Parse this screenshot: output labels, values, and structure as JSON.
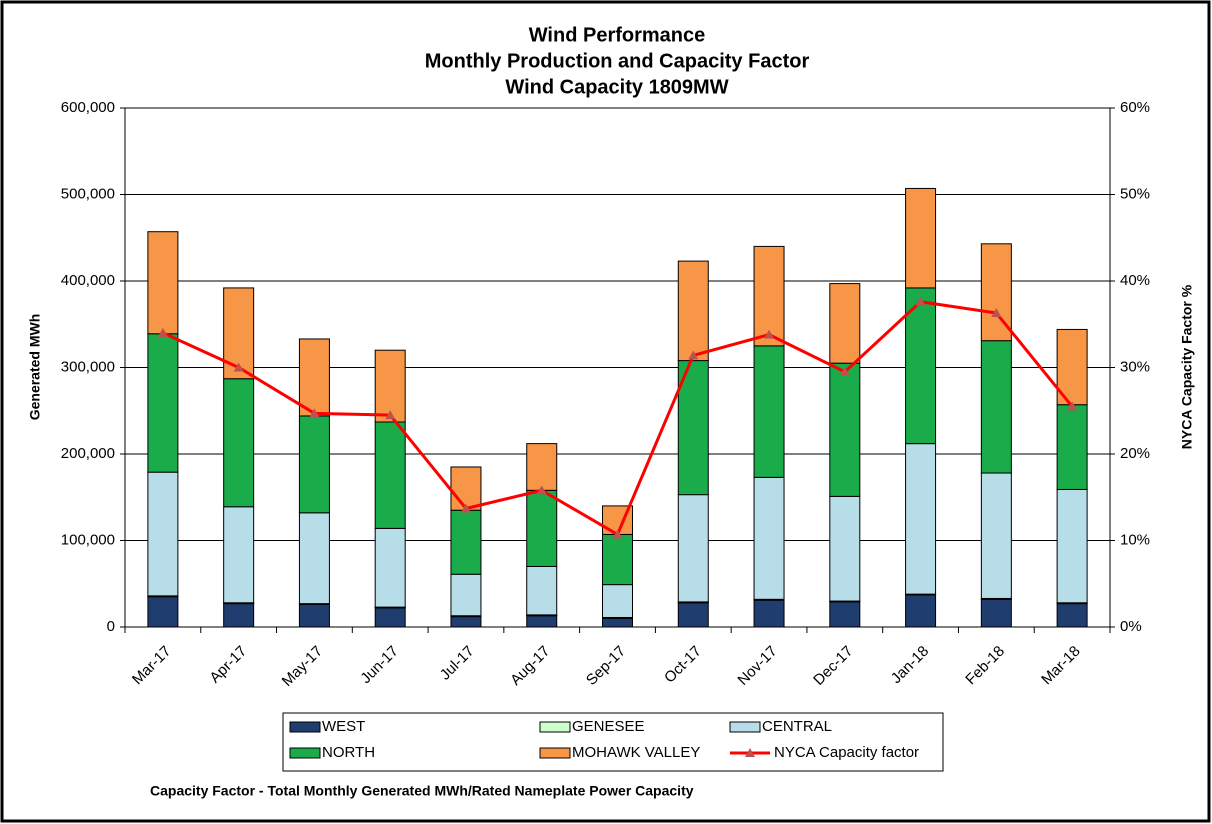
{
  "chart_data": {
    "type": "bar",
    "stacked": true,
    "title": "Wind Performance",
    "subtitle": [
      "Monthly Production and Capacity Factor",
      "Wind Capacity 1809MW"
    ],
    "y_label": "Generated  MWh",
    "y2_label": "NYCA Capacity  Factor %",
    "note": "Capacity Factor  - Total Monthly Generated MWh/Rated Nameplate Power Capacity",
    "categories": [
      "Mar-17",
      "Apr-17",
      "May-17",
      "Jun-17",
      "Jul-17",
      "Aug-17",
      "Sep-17",
      "Oct-17",
      "Nov-17",
      "Dec-17",
      "Jan-18",
      "Feb-18",
      "Mar-18"
    ],
    "series": [
      {
        "name": "WEST",
        "color": "#1f3d6e",
        "values": [
          35000,
          27000,
          26000,
          22000,
          12000,
          13000,
          10000,
          28000,
          31000,
          29000,
          37000,
          32000,
          27000
        ]
      },
      {
        "name": "GENESEE",
        "color": "#ccffcc",
        "values": [
          1000,
          1000,
          1000,
          1000,
          1000,
          1000,
          1000,
          1000,
          1000,
          1000,
          1000,
          1000,
          1000
        ]
      },
      {
        "name": "CENTRAL",
        "color": "#b7dde8",
        "values": [
          143000,
          111000,
          105000,
          91000,
          48000,
          56000,
          38000,
          124000,
          141000,
          121000,
          174000,
          145000,
          131000
        ]
      },
      {
        "name": "NORTH",
        "color": "#1aab4b",
        "values": [
          160000,
          148000,
          112000,
          123000,
          74000,
          88000,
          58000,
          155000,
          152000,
          154000,
          180000,
          153000,
          98000
        ]
      },
      {
        "name": "MOHAWK VALLEY",
        "color": "#f79646",
        "values": [
          118000,
          105000,
          89000,
          83000,
          50000,
          54000,
          33000,
          115000,
          115000,
          92000,
          115000,
          112000,
          87000
        ]
      },
      {
        "name": "NYCA Capacity factor",
        "color": "#ff0000",
        "marker_color": "#c0504d",
        "type": "line",
        "axis": "y2",
        "values": [
          34,
          30,
          24.7,
          24.5,
          13.7,
          15.8,
          10.7,
          31.4,
          33.8,
          29.5,
          37.6,
          36.3,
          25.5
        ]
      }
    ],
    "ylim": [
      0,
      600000
    ],
    "yticks": [
      0,
      {
        "value": 100000,
        "label": "100,000"
      },
      {
        "value": 200000,
        "label": "200,000"
      },
      {
        "value": 300000,
        "label": "300,000"
      },
      {
        "value": 400000,
        "label": "400,000"
      },
      {
        "value": 500000,
        "label": "500,000"
      },
      {
        "value": 600000,
        "label": "600,000"
      }
    ],
    "y2lim": [
      0,
      60
    ],
    "y2ticks": [
      {
        "value": 0,
        "label": "0%"
      },
      {
        "value": 10,
        "label": "10%"
      },
      {
        "value": 20,
        "label": "20%"
      },
      {
        "value": 30,
        "label": "30%"
      },
      {
        "value": 40,
        "label": "40%"
      },
      {
        "value": 50,
        "label": "50%"
      },
      {
        "value": 60,
        "label": "60%"
      }
    ],
    "grid": true,
    "legend": "bottom"
  }
}
